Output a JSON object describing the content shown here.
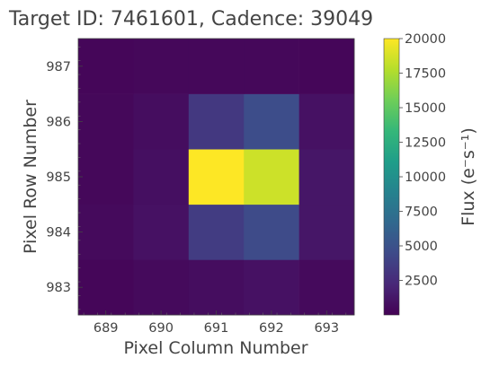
{
  "chart_data": {
    "type": "heatmap",
    "title": "Target ID: 7461601, Cadence: 39049",
    "xlabel": "Pixel Column Number",
    "ylabel": "Pixel Row Number",
    "x": [
      689,
      690,
      691,
      692,
      693
    ],
    "y": [
      983,
      984,
      985,
      986,
      987
    ],
    "x_ticks": [
      "689",
      "690",
      "691",
      "692",
      "693"
    ],
    "y_ticks": [
      "983",
      "984",
      "985",
      "986",
      "987"
    ],
    "xlim": [
      688.5,
      693.5
    ],
    "ylim": [
      982.5,
      987.5
    ],
    "values": [
      [
        300,
        500,
        700,
        900,
        500
      ],
      [
        500,
        900,
        3500,
        4500,
        1200
      ],
      [
        400,
        800,
        20000,
        18500,
        1200
      ],
      [
        400,
        700,
        3300,
        4700,
        900
      ],
      [
        300,
        400,
        400,
        400,
        300
      ]
    ],
    "colorbar": {
      "label": "Flux (e⁻s⁻¹)",
      "min": 0,
      "max": 20000,
      "colormap": "viridis",
      "ticks": [
        "2500",
        "5000",
        "7500",
        "10000",
        "12500",
        "15000",
        "17500",
        "20000"
      ],
      "tick_values": [
        2500,
        5000,
        7500,
        10000,
        12500,
        15000,
        17500,
        20000
      ]
    }
  }
}
